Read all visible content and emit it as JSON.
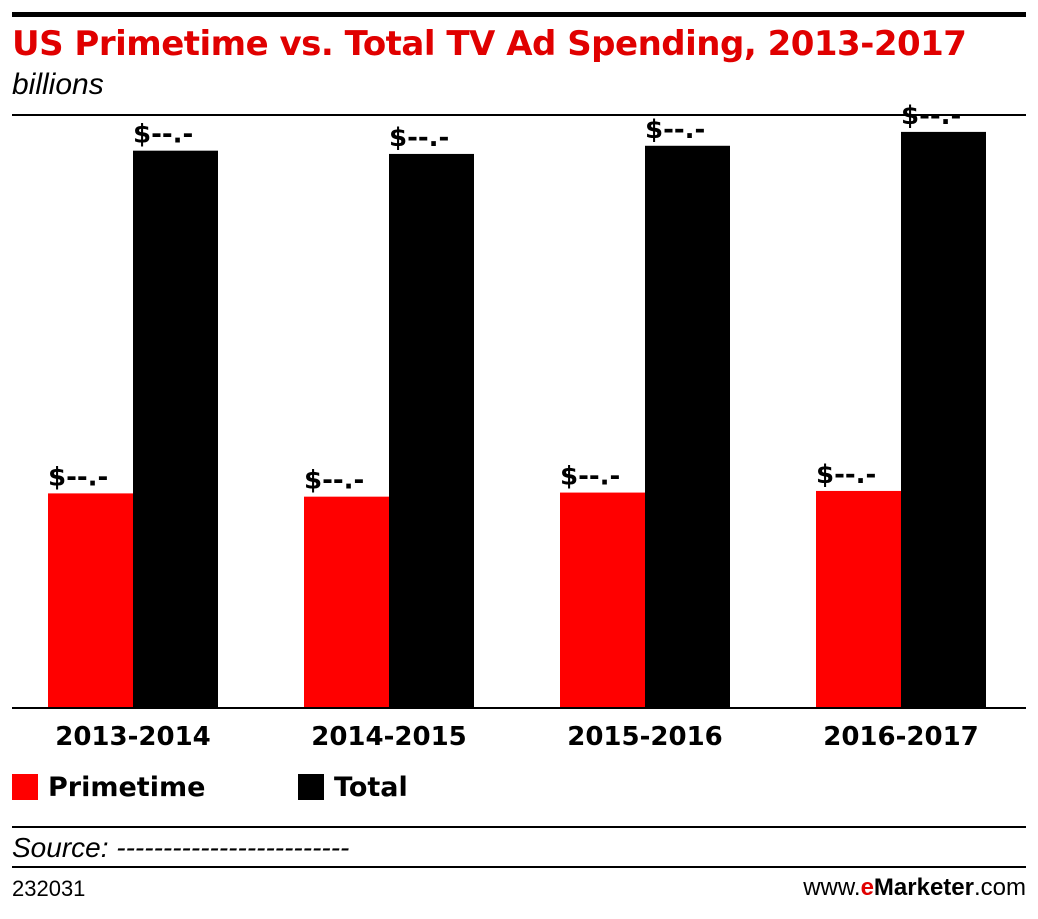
{
  "chart_data": {
    "type": "bar",
    "title": "US Primetime vs. Total TV Ad Spending, 2013-2017",
    "subtitle": "billions",
    "categories": [
      "2013-2014",
      "2014-2015",
      "2015-2016",
      "2016-2017"
    ],
    "series": [
      {
        "name": "Primetime",
        "color": "#ff0000",
        "values": [
          26.3,
          25.9,
          26.4,
          26.6
        ],
        "labels": [
          "$--.-",
          "$--.-",
          "$--.-",
          "$--.-"
        ]
      },
      {
        "name": "Total",
        "color": "#000000",
        "values": [
          68.3,
          67.9,
          68.9,
          70.6
        ],
        "labels": [
          "$--.-",
          "$--.-",
          "$--.-",
          "$--.-"
        ]
      }
    ],
    "ylim": [
      0,
      75
    ],
    "grid": false,
    "legend_position": "bottom-left"
  },
  "footer": {
    "source": "Source: -------------------------",
    "chart_id": "232031",
    "brand_prefix": "www.",
    "brand_e": "e",
    "brand_name": "Marketer",
    "brand_suffix": ".com"
  }
}
